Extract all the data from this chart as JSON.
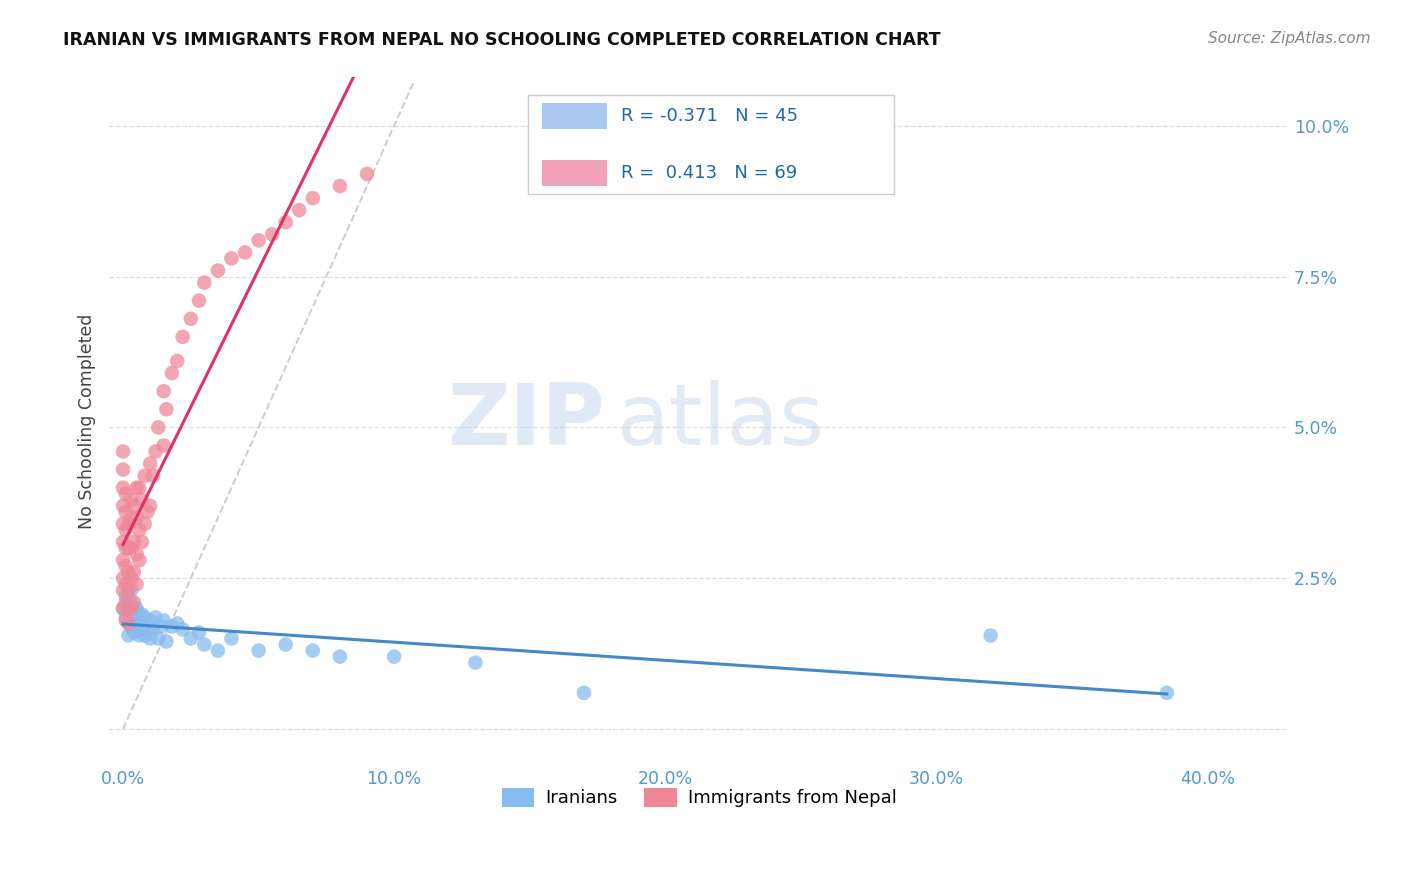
{
  "title": "IRANIAN VS IMMIGRANTS FROM NEPAL NO SCHOOLING COMPLETED CORRELATION CHART",
  "source": "Source: ZipAtlas.com",
  "ylabel": "No Schooling Completed",
  "watermark_zip": "ZIP",
  "watermark_atlas": "atlas",
  "x_tick_positions": [
    0.0,
    0.1,
    0.2,
    0.3,
    0.4
  ],
  "x_tick_labels": [
    "0.0%",
    "10.0%",
    "20.0%",
    "30.0%",
    "40.0%"
  ],
  "y_tick_positions": [
    0.0,
    0.025,
    0.05,
    0.075,
    0.1
  ],
  "y_tick_labels": [
    "",
    "2.5%",
    "5.0%",
    "7.5%",
    "10.0%"
  ],
  "xlim": [
    -0.005,
    0.43
  ],
  "ylim": [
    -0.006,
    0.108
  ],
  "legend_line1": "R = -0.371   N = 45",
  "legend_line2": "R =  0.413   N = 69",
  "legend_color1": "#a8c8f0",
  "legend_color2": "#f0a0b8",
  "iranians_dot_color": "#88bbee",
  "nepal_dot_color": "#ee8899",
  "iranians_line_color": "#4488cc",
  "nepal_line_color": "#dd3366",
  "diag_line_color": "#cccccc",
  "tick_color": "#5599cc",
  "grid_color": "#dddddd",
  "background_color": "#ffffff",
  "title_color": "#111111",
  "ylabel_color": "#444444",
  "source_color": "#888888",
  "legend_label1": "Iranians",
  "legend_label2": "Immigrants from Nepal",
  "iranians_x": [
    0.0,
    0.001,
    0.001,
    0.002,
    0.002,
    0.002,
    0.003,
    0.003,
    0.003,
    0.004,
    0.004,
    0.005,
    0.005,
    0.006,
    0.006,
    0.007,
    0.007,
    0.008,
    0.008,
    0.009,
    0.01,
    0.01,
    0.011,
    0.012,
    0.013,
    0.014,
    0.015,
    0.016,
    0.018,
    0.02,
    0.022,
    0.025,
    0.028,
    0.03,
    0.035,
    0.04,
    0.05,
    0.06,
    0.07,
    0.08,
    0.1,
    0.13,
    0.17,
    0.32,
    0.385
  ],
  "iranians_y": [
    0.02,
    0.022,
    0.0185,
    0.0195,
    0.0155,
    0.022,
    0.023,
    0.017,
    0.021,
    0.018,
    0.016,
    0.02,
    0.0195,
    0.0175,
    0.0155,
    0.019,
    0.0165,
    0.0185,
    0.0155,
    0.0165,
    0.018,
    0.015,
    0.0165,
    0.0185,
    0.015,
    0.017,
    0.018,
    0.0145,
    0.017,
    0.0175,
    0.0165,
    0.015,
    0.016,
    0.014,
    0.013,
    0.015,
    0.013,
    0.014,
    0.013,
    0.012,
    0.012,
    0.011,
    0.006,
    0.0155,
    0.006
  ],
  "nepal_x": [
    0.0,
    0.0,
    0.0,
    0.0,
    0.0,
    0.0,
    0.0,
    0.0,
    0.0,
    0.0,
    0.001,
    0.001,
    0.001,
    0.001,
    0.001,
    0.001,
    0.001,
    0.001,
    0.002,
    0.002,
    0.002,
    0.002,
    0.002,
    0.002,
    0.003,
    0.003,
    0.003,
    0.003,
    0.003,
    0.004,
    0.004,
    0.004,
    0.004,
    0.005,
    0.005,
    0.005,
    0.005,
    0.006,
    0.006,
    0.006,
    0.007,
    0.007,
    0.008,
    0.008,
    0.009,
    0.01,
    0.01,
    0.011,
    0.012,
    0.013,
    0.015,
    0.015,
    0.016,
    0.018,
    0.02,
    0.022,
    0.025,
    0.028,
    0.03,
    0.035,
    0.04,
    0.045,
    0.05,
    0.055,
    0.06,
    0.065,
    0.07,
    0.08,
    0.09
  ],
  "nepal_y": [
    0.02,
    0.023,
    0.025,
    0.028,
    0.031,
    0.034,
    0.037,
    0.04,
    0.043,
    0.046,
    0.018,
    0.021,
    0.024,
    0.027,
    0.03,
    0.033,
    0.036,
    0.039,
    0.0175,
    0.02,
    0.023,
    0.026,
    0.03,
    0.034,
    0.02,
    0.025,
    0.03,
    0.035,
    0.038,
    0.021,
    0.026,
    0.031,
    0.037,
    0.024,
    0.029,
    0.035,
    0.04,
    0.028,
    0.033,
    0.04,
    0.031,
    0.038,
    0.034,
    0.042,
    0.036,
    0.037,
    0.044,
    0.042,
    0.046,
    0.05,
    0.047,
    0.056,
    0.053,
    0.059,
    0.061,
    0.065,
    0.068,
    0.071,
    0.074,
    0.076,
    0.078,
    0.079,
    0.081,
    0.082,
    0.084,
    0.086,
    0.088,
    0.09,
    0.092
  ]
}
